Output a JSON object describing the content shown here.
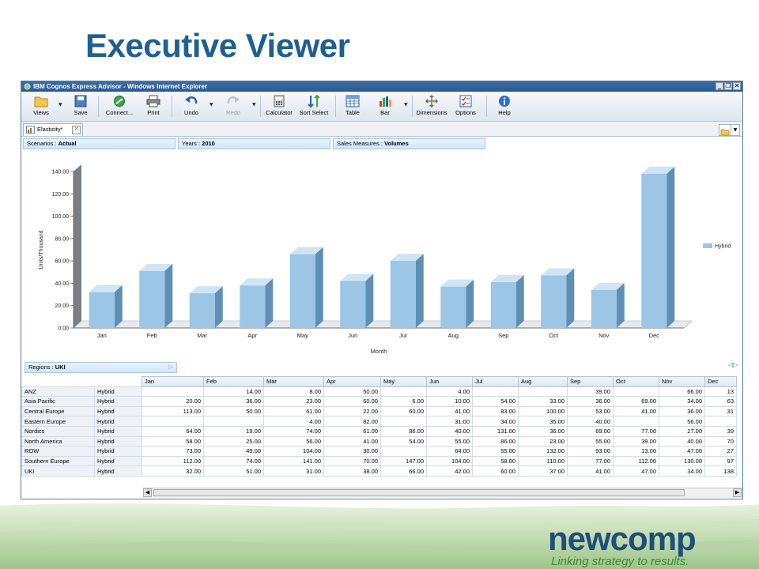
{
  "slide": {
    "title": "Executive Viewer"
  },
  "window": {
    "title": "IBM Cognos Express Advisor - Windows Internet Explorer"
  },
  "toolbar": {
    "views": "Views",
    "save": "Save",
    "connect": "Connect...",
    "print": "Print",
    "undo": "Undo",
    "redo": "Redo",
    "calculator": "Calculator",
    "sort_select": "Sort Select",
    "table": "Table",
    "bar": "Bar",
    "dimensions": "Dimensions",
    "options": "Options",
    "help": "Help"
  },
  "tab": {
    "label": "Elasticity*"
  },
  "filters": {
    "scenarios_label": "Scenarios :",
    "scenarios_value": "Actual",
    "years_label": "Years :",
    "years_value": "2010",
    "measures_label": "Sales Measures :",
    "measures_value": "Volumes",
    "regions_label": "Regions :",
    "regions_value": "UKI"
  },
  "chart_data": {
    "type": "bar",
    "categories": [
      "Jan",
      "Feb",
      "Mar",
      "Apr",
      "May",
      "Jun",
      "Jul",
      "Aug",
      "Sep",
      "Oct",
      "Nov",
      "Dec"
    ],
    "series": [
      {
        "name": "Hybrid",
        "values": [
          32,
          51,
          31,
          38,
          66,
          42,
          60,
          37,
          41,
          47,
          34,
          138
        ],
        "color": "#9cc5e6"
      }
    ],
    "title": "",
    "xlabel": "Month",
    "ylabel": "Units/Thousand",
    "ylim": [
      0,
      140
    ],
    "yticks": [
      "0.00",
      "20.00",
      "40.00",
      "60.00",
      "80.00",
      "100.00",
      "120.00",
      "140.00"
    ],
    "legend_position": "right"
  },
  "table": {
    "columns": [
      "Jan",
      "Feb",
      "Mar",
      "Apr",
      "May",
      "Jun",
      "Jul",
      "Aug",
      "Sep",
      "Oct",
      "Nov",
      "Dec"
    ],
    "rows": [
      {
        "region": "ANZ",
        "product": "Hybrid",
        "values": [
          "",
          "14.00",
          "8.00",
          "50.00",
          "",
          "4.00",
          "",
          "",
          "39.00",
          "",
          "66.00",
          "13"
        ]
      },
      {
        "region": "Asia Pacific",
        "product": "Hybrid",
        "values": [
          "20.00",
          "36.00",
          "23.00",
          "60.00",
          "6.00",
          "10.00",
          "54.00",
          "33.00",
          "36.00",
          "69.00",
          "34.00",
          "63"
        ]
      },
      {
        "region": "Central Europe",
        "product": "Hybrid",
        "values": [
          "113.00",
          "50.00",
          "61.00",
          "22.00",
          "60.00",
          "41.00",
          "83.00",
          "100.00",
          "53.00",
          "41.00",
          "36.00",
          "31"
        ]
      },
      {
        "region": "Eastern Europe",
        "product": "Hybrid",
        "values": [
          "",
          "",
          "4.00",
          "82.00",
          "",
          "31.00",
          "34.00",
          "35.00",
          "40.00",
          "",
          "56.00",
          ""
        ]
      },
      {
        "region": "Nordics",
        "product": "Hybrid",
        "values": [
          "64.00",
          "19.00",
          "74.00",
          "61.00",
          "86.00",
          "40.00",
          "131.00",
          "36.00",
          "69.00",
          "77.00",
          "27.00",
          "39"
        ]
      },
      {
        "region": "North America",
        "product": "Hybrid",
        "values": [
          "58.00",
          "25.00",
          "56.00",
          "41.00",
          "54.00",
          "55.00",
          "86.00",
          "23.00",
          "55.00",
          "39.00",
          "40.00",
          "70"
        ]
      },
      {
        "region": "ROW",
        "product": "Hybrid",
        "values": [
          "73.00",
          "49.00",
          "104.00",
          "30.00",
          "",
          "64.00",
          "55.00",
          "132.00",
          "93.00",
          "13.00",
          "47.00",
          "27"
        ]
      },
      {
        "region": "Southern Europe",
        "product": "Hybrid",
        "values": [
          "112.00",
          "74.00",
          "141.00",
          "70.00",
          "147.00",
          "104.00",
          "58.00",
          "110.00",
          "77.00",
          "112.00",
          "130.00",
          "97"
        ]
      },
      {
        "region": "UKI",
        "product": "Hybrid",
        "values": [
          "32.00",
          "51.00",
          "31.00",
          "38.00",
          "66.00",
          "42.00",
          "60.00",
          "37.00",
          "41.00",
          "47.00",
          "34.00",
          "138"
        ]
      }
    ]
  },
  "logo": {
    "word": "newcomp",
    "tagline": "Linking strategy to results."
  }
}
